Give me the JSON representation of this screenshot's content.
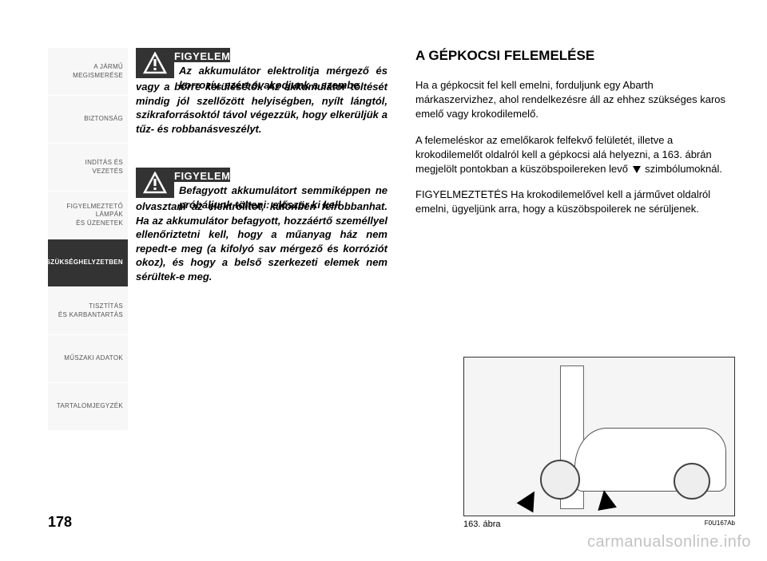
{
  "sidebar": {
    "items": [
      {
        "label": "A JÁRMŰ\nMEGISMERÉSE",
        "active": false
      },
      {
        "label": "BIZTONSÁG",
        "active": false
      },
      {
        "label": "INDÍTÁS ÉS VEZETÉS",
        "active": false
      },
      {
        "label": "FIGYELMEZTETŐ\nLÁMPÁK\nÉS ÜZENETEK",
        "active": false
      },
      {
        "label": "SZÜKSÉGHELYZETBEN",
        "active": true
      },
      {
        "label": "TISZTÍTÁS\nÉS KARBANTARTÁS",
        "active": false
      },
      {
        "label": "MŰSZAKI ADATOK",
        "active": false
      },
      {
        "label": "TARTALOMJEGYZÉK",
        "active": false
      }
    ]
  },
  "warnings": [
    {
      "title": "FIGYELEM",
      "first": "Az akkumulátor elektrolitja mérgező és korrozív, ezért óvakodjunk a szembe",
      "rest": "vagy a bőrre kerülésétől. Az akkumulátor töltését mindig jól szellőzött helyiségben, nyílt lángtól, szikraforrásoktól távol végezzük, hogy elkerüljük a tűz- és robbanásveszélyt."
    },
    {
      "title": "FIGYELEM",
      "first": "Befagyott akkumulátort semmiképpen ne próbáljunk tölteni: először ki kell",
      "rest": "olvasztani az elektrolitot, különben felrobbanhat. Ha az akkumulátor befagyott, hozzáértő személlyel ellenőriztetni kell, hogy a műanyag ház nem repedt-e meg (a kifolyó sav mérgező és korróziót okoz), és hogy a belső szerkezeti elemek nem sérültek-e meg."
    }
  ],
  "section": {
    "title": "A GÉPKOCSI FELEMELÉSE",
    "paragraphs": [
      "Ha a gépkocsit fel kell emelni, forduljunk egy Abarth márkaszervizhez, ahol rendelkezésre áll az ehhez szükséges karos emelő vagy krokodilemelő.",
      "A felemeléskor az emelőkarok felfekvő felületét, illetve a krokodilemelőt oldalról kell a gépkocsi alá helyezni, a 163. ábrán megjelölt pontokban a küszöbspoilereken levő ▼ szimbólumoknál.",
      "FIGYELMEZTETÉS Ha krokodilemelővel kell a járművet oldalról emelni, ügyeljünk arra, hogy a küszöbspoilerek ne sérüljenek."
    ]
  },
  "figure": {
    "caption": "163. ábra",
    "code": "F0U167Ab"
  },
  "page_number": "178",
  "watermark": "carmanualsonline.info",
  "colors": {
    "dark": "#333333",
    "sidebar_bg": "#f7f7f7",
    "text": "#000000"
  }
}
